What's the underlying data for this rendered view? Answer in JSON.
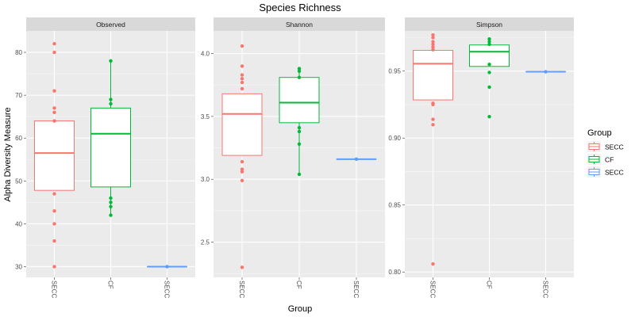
{
  "chart_data": {
    "type": "box",
    "title": "Species Richness",
    "xlabel": "Group",
    "ylabel": "Alpha Diversity Measure",
    "categories": [
      "SECC",
      "CF",
      "SECC"
    ],
    "colors": [
      "#F8766D",
      "#00BA38",
      "#619CFF"
    ],
    "legend": {
      "title": "Group",
      "placement": "right",
      "entries": [
        "SECC",
        "CF",
        "SECC"
      ]
    },
    "facets": [
      {
        "name": "Observed",
        "ylim": [
          27.5,
          85.0
        ],
        "yticks": [
          30,
          40,
          50,
          60,
          70,
          80
        ],
        "ytick_labels": [
          "30",
          "40",
          "50",
          "60",
          "70",
          "80"
        ],
        "boxes": [
          {
            "q1": 47.8,
            "median": 56.5,
            "q3": 64.0,
            "whisker_low": 47.8,
            "whisker_high": 64.0,
            "points": [
              82,
              80,
              71,
              67,
              66,
              64,
              47,
              43,
              40,
              36,
              30
            ]
          },
          {
            "q1": 48.6,
            "median": 61.0,
            "q3": 67.0,
            "whisker_low": 42.0,
            "whisker_high": 78.0,
            "points": [
              78,
              69,
              68,
              46,
              45,
              44,
              42
            ]
          },
          {
            "q1": 30.0,
            "median": 30.0,
            "q3": 30.0,
            "whisker_low": 30.0,
            "whisker_high": 30.0,
            "points": [
              30
            ]
          }
        ]
      },
      {
        "name": "Shannon",
        "ylim": [
          2.22,
          4.18
        ],
        "yticks": [
          2.5,
          3.0,
          3.5,
          4.0
        ],
        "ytick_labels": [
          "2.5",
          "3.0",
          "3.5",
          "4.0"
        ],
        "boxes": [
          {
            "q1": 3.19,
            "median": 3.52,
            "q3": 3.68,
            "whisker_low": 3.19,
            "whisker_high": 3.68,
            "points": [
              4.06,
              3.9,
              3.83,
              3.8,
              3.77,
              3.72,
              3.14,
              3.08,
              3.06,
              2.99,
              2.3
            ]
          },
          {
            "q1": 3.45,
            "median": 3.61,
            "q3": 3.81,
            "whisker_low": 3.04,
            "whisker_high": 3.88,
            "points": [
              3.88,
              3.86,
              3.81,
              3.41,
              3.38,
              3.28,
              3.04
            ]
          },
          {
            "q1": 3.16,
            "median": 3.16,
            "q3": 3.16,
            "whisker_low": 3.16,
            "whisker_high": 3.16,
            "points": [
              3.16
            ]
          }
        ]
      },
      {
        "name": "Simpson",
        "ylim": [
          0.796,
          0.98
        ],
        "yticks": [
          0.8,
          0.85,
          0.9,
          0.95
        ],
        "ytick_labels": [
          "0.80",
          "0.85",
          "0.90",
          "0.95"
        ],
        "boxes": [
          {
            "q1": 0.9285,
            "median": 0.9555,
            "q3": 0.9655,
            "whisker_low": 0.9285,
            "whisker_high": 0.9655,
            "points": [
              0.977,
              0.975,
              0.972,
              0.97,
              0.968,
              0.966,
              0.926,
              0.925,
              0.914,
              0.91,
              0.806
            ]
          },
          {
            "q1": 0.9535,
            "median": 0.9645,
            "q3": 0.9695,
            "whisker_low": 0.9535,
            "whisker_high": 0.9745,
            "points": [
              0.974,
              0.972,
              0.97,
              0.955,
              0.949,
              0.938,
              0.916
            ]
          },
          {
            "q1": 0.9495,
            "median": 0.9495,
            "q3": 0.9495,
            "whisker_low": 0.9495,
            "whisker_high": 0.9495,
            "points": [
              0.9495
            ]
          }
        ]
      }
    ]
  }
}
